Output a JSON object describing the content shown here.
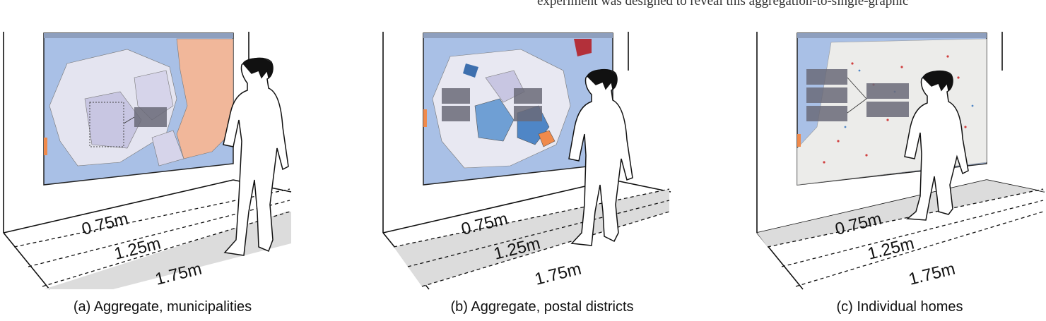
{
  "header": {
    "running_text": "experiment was designed to reveal this aggregation-to-single-graphic"
  },
  "panels": [
    {
      "caption": "(a) Aggregate, municipalities",
      "distances": [
        "0.75m",
        "1.25m",
        "1.75m"
      ],
      "shaded_zone": "1.75m",
      "map_view": "municipalities"
    },
    {
      "caption": "(b) Aggregate, postal districts",
      "distances": [
        "0.75m",
        "1.25m",
        "1.75m"
      ],
      "shaded_zone": "1.25m",
      "map_view": "postal districts"
    },
    {
      "caption": "(c) Individual homes",
      "distances": [
        "0.75m",
        "1.25m",
        "1.75m"
      ],
      "shaded_zone": "0.75m",
      "map_view": "individual homes"
    }
  ],
  "colors": {
    "sea": "#a9c0e6",
    "land_light": "#e4e4f0",
    "land_purple": "#c8c6e2",
    "land_orange": "#f1b79a",
    "land_blue": "#6f9fd4",
    "floor_shade": "#dcdcdc",
    "person": "#111111"
  }
}
